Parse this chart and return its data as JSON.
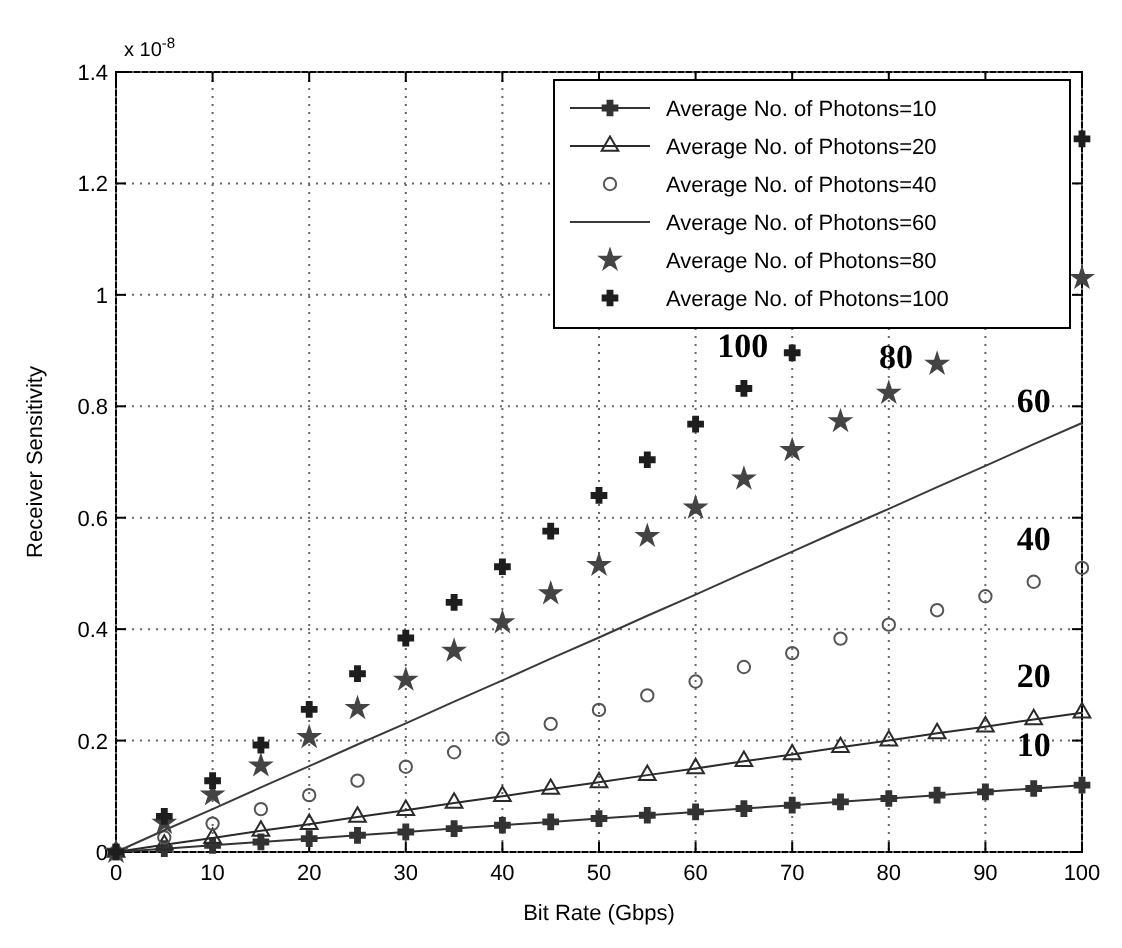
{
  "chart_data": {
    "type": "line",
    "xlabel": "Bit Rate (Gbps)",
    "ylabel": "Receiver Sensitivity",
    "xlim": [
      0,
      100
    ],
    "ylim": [
      0,
      1.4
    ],
    "xticks": [
      0,
      10,
      20,
      30,
      40,
      50,
      60,
      70,
      80,
      90,
      100
    ],
    "yticks": [
      0,
      0.2,
      0.4,
      0.6,
      0.8,
      1,
      1.2,
      1.4
    ],
    "grid": true,
    "legend": "top right",
    "x": [
      0,
      5,
      10,
      15,
      20,
      25,
      30,
      35,
      40,
      45,
      50,
      55,
      60,
      65,
      70,
      75,
      80,
      85,
      90,
      95,
      100
    ],
    "series": [
      {
        "name": "Average No. of Photons=10",
        "marker": "cross",
        "line_style": "solid",
        "color": "#333333",
        "values": [
          0,
          0.006,
          0.012,
          0.018,
          0.024,
          0.03,
          0.036,
          0.042,
          0.048,
          0.054,
          0.06,
          0.066,
          0.072,
          0.078,
          0.084,
          0.09,
          0.096,
          0.102,
          0.108,
          0.114,
          0.12
        ]
      },
      {
        "name": "Average No. of Photons=20",
        "marker": "triangle",
        "line_style": "solid",
        "color": "#2a2a2a",
        "values": [
          0,
          0.013,
          0.025,
          0.038,
          0.05,
          0.063,
          0.075,
          0.088,
          0.1,
          0.113,
          0.125,
          0.138,
          0.15,
          0.163,
          0.175,
          0.188,
          0.2,
          0.213,
          0.225,
          0.238,
          0.25
        ]
      },
      {
        "name": "Average No. of Photons=40",
        "type": "scatter",
        "marker": "circle",
        "color": "#555555",
        "values": [
          0,
          0.026,
          0.051,
          0.077,
          0.102,
          0.128,
          0.153,
          0.179,
          0.204,
          0.23,
          0.255,
          0.281,
          0.306,
          0.332,
          0.357,
          0.383,
          0.408,
          0.434,
          0.459,
          0.485,
          0.51
        ]
      },
      {
        "name": "Average No. of Photons=60",
        "marker": "none",
        "line_style": "solid",
        "color": "#3a3a3a",
        "values": [
          0,
          0.039,
          0.077,
          0.116,
          0.154,
          0.193,
          0.231,
          0.27,
          0.308,
          0.347,
          0.385,
          0.424,
          0.462,
          0.501,
          0.539,
          0.578,
          0.616,
          0.655,
          0.693,
          0.732,
          0.77
        ]
      },
      {
        "name": "Average No. of Photons=80",
        "type": "scatter",
        "marker": "star",
        "color": "#444444",
        "values": [
          0,
          0.052,
          0.103,
          0.155,
          0.206,
          0.258,
          0.309,
          0.361,
          0.412,
          0.464,
          0.515,
          0.567,
          0.618,
          0.67,
          0.721,
          0.773,
          0.824,
          0.876,
          null,
          null,
          1.03
        ]
      },
      {
        "name": "Average No. of Photons=100",
        "type": "scatter",
        "marker": "cross",
        "color": "#1e1e1e",
        "values": [
          0,
          0.064,
          0.128,
          0.192,
          0.256,
          0.32,
          0.384,
          0.448,
          0.512,
          0.576,
          0.64,
          0.704,
          0.768,
          0.832,
          0.896,
          null,
          null,
          null,
          null,
          null,
          1.28
        ]
      }
    ],
    "annotations": [
      "x 10$^{-8}$",
      "100",
      "80",
      "60",
      "40",
      "20",
      "10"
    ]
  }
}
